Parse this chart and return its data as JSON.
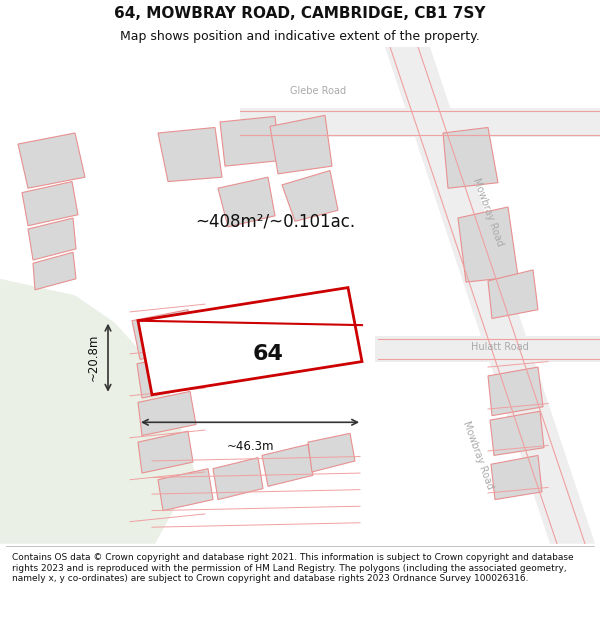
{
  "title": "64, MOWBRAY ROAD, CAMBRIDGE, CB1 7SY",
  "subtitle": "Map shows position and indicative extent of the property.",
  "footer": "Contains OS data © Crown copyright and database right 2021. This information is subject to Crown copyright and database rights 2023 and is reproduced with the permission of HM Land Registry. The polygons (including the associated geometry, namely x, y co-ordinates) are subject to Crown copyright and database rights 2023 Ordnance Survey 100026316.",
  "area_label": "~408m²/~0.101ac.",
  "width_label": "~46.3m",
  "height_label": "~20.8m",
  "number_label": "64",
  "bg_color": "#ffffff",
  "highlight_color": "#cc0000",
  "building_fill": "#d8d8d8",
  "building_edge": "#e89090",
  "green_fill": "#eaf0e6",
  "road_label_color": "#aaaaaa",
  "title_fontsize": 11,
  "subtitle_fontsize": 9,
  "footer_fontsize": 6.5
}
